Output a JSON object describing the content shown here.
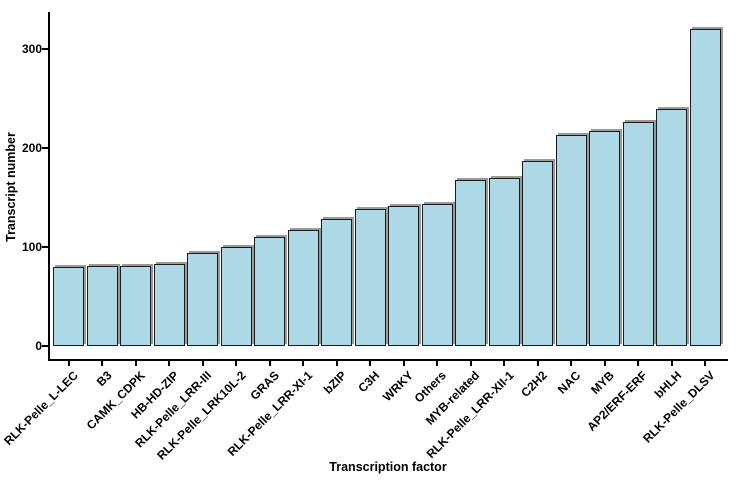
{
  "chart_data": {
    "type": "bar",
    "title": "",
    "xlabel": "Transcription factor",
    "ylabel": "Transcript number",
    "categories": [
      "RLK-Pelle_L-LEC",
      "B3",
      "CAMK_CDPK",
      "HB-HD-ZIP",
      "RLK-Pelle_LRR-III",
      "RLK-Pelle_LRK10L-2",
      "GRAS",
      "RLK-Pelle_LRR-XI-1",
      "bZIP",
      "C3H",
      "WRKY",
      "Others",
      "MYB-related",
      "RLK-Pelle_LRR-XII-1",
      "C2H2",
      "NAC",
      "MYB",
      "AP2/ERF-ERF",
      "bHLH",
      "RLK-Pelle_DLSV"
    ],
    "values": [
      80,
      81,
      81,
      83,
      94,
      100,
      110,
      117,
      128,
      139,
      142,
      144,
      168,
      170,
      187,
      213,
      217,
      226,
      240,
      321
    ],
    "yticks": [
      0,
      100,
      200,
      300
    ],
    "ylim": [
      0,
      338
    ],
    "grid": false,
    "legend_position": "none",
    "colors": {
      "bar_fill": "#add8e6",
      "bar_edge": "#1c1c1c",
      "bar_shadow": "#9a9a9a",
      "axis": "#000000",
      "text": "#000000"
    }
  }
}
